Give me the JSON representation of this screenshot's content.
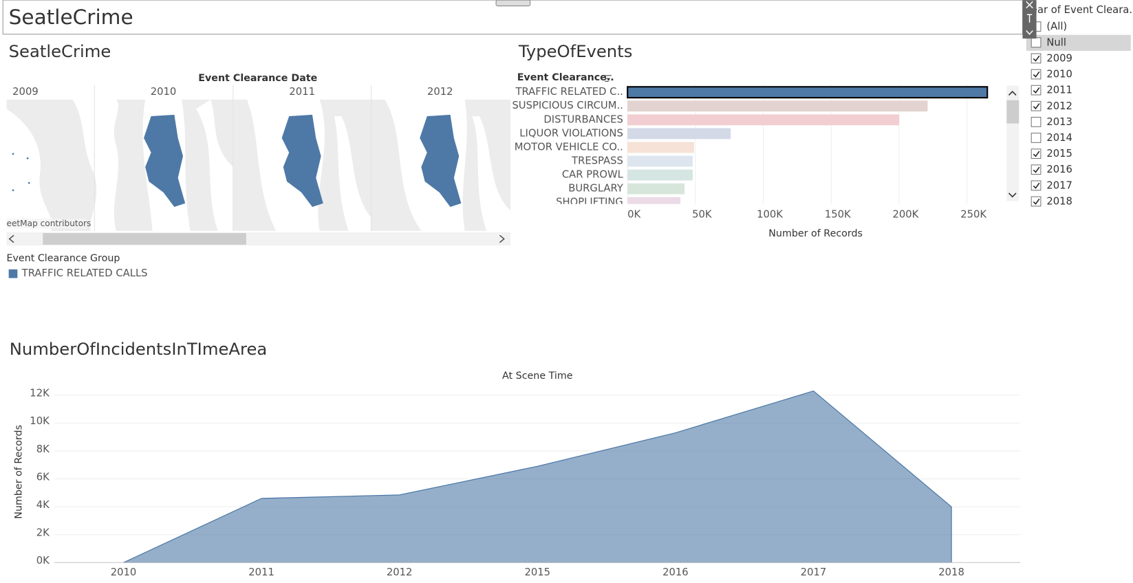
{
  "header": {
    "title": "SeatleCrime"
  },
  "map": {
    "title": "SeatleCrime",
    "column_header": "Event Clearance Date",
    "columns": [
      "2009",
      "2010",
      "2011",
      "2012"
    ],
    "attribution": "eetMap contributors",
    "legend_title": "Event Clearance Group",
    "legend_items": [
      {
        "name": "TRAFFIC RELATED CALLS",
        "color": "#4e79a7"
      }
    ]
  },
  "filter": {
    "title": "Year of Event Cleara..",
    "items": [
      {
        "label": "(All)",
        "checked": false
      },
      {
        "label": "Null",
        "checked": false
      },
      {
        "label": "2009",
        "checked": true
      },
      {
        "label": "2010",
        "checked": true
      },
      {
        "label": "2011",
        "checked": true
      },
      {
        "label": "2012",
        "checked": true
      },
      {
        "label": "2013",
        "checked": false
      },
      {
        "label": "2014",
        "checked": false
      },
      {
        "label": "2015",
        "checked": true
      },
      {
        "label": "2016",
        "checked": true
      },
      {
        "label": "2017",
        "checked": true
      },
      {
        "label": "2018",
        "checked": true
      }
    ]
  },
  "chart_data": [
    {
      "type": "hbar",
      "title": "TypeOfEvents",
      "y_label": "Event Clearance..",
      "x_label": "Number of Records",
      "categories": [
        "TRAFFIC RELATED C..",
        "SUSPICIOUS CIRCUM..",
        "DISTURBANCES",
        "LIQUOR VIOLATIONS",
        "MOTOR VEHICLE CO..",
        "TRESPASS",
        "CAR PROWL",
        "BURGLARY",
        "SHOPLIFTING"
      ],
      "values": [
        265000,
        221000,
        200000,
        76000,
        49000,
        48000,
        48000,
        42000,
        39000
      ],
      "colors": [
        "#4e79a7",
        "#e2d2d0",
        "#f2cdd1",
        "#d3d9e6",
        "#f6e2d6",
        "#dde6ee",
        "#d5e5e2",
        "#d6e6db",
        "#eadbe6"
      ],
      "xlim": [
        0,
        276000
      ],
      "xticks": [
        {
          "value": 0,
          "label": "0K"
        },
        {
          "value": 50000,
          "label": "50K"
        },
        {
          "value": 100000,
          "label": "100K"
        },
        {
          "value": 150000,
          "label": "150K"
        },
        {
          "value": 200000,
          "label": "200K"
        },
        {
          "value": 250000,
          "label": "250K"
        }
      ],
      "grid": true
    },
    {
      "type": "area",
      "title": "NumberOfIncidentsInTImeArea",
      "subtitle": "At Scene Time",
      "y_label": "Number of Records",
      "categories": [
        "2010",
        "2011",
        "2012",
        "2015",
        "2016",
        "2017",
        "2018"
      ],
      "values": [
        0,
        4600,
        4850,
        6900,
        9300,
        12300,
        4000
      ],
      "color": "#4e79a7",
      "ylim": [
        0,
        12900
      ],
      "yticks": [
        {
          "value": 0,
          "label": "0K"
        },
        {
          "value": 2000,
          "label": "2K"
        },
        {
          "value": 4000,
          "label": "4K"
        },
        {
          "value": 6000,
          "label": "6K"
        },
        {
          "value": 8000,
          "label": "8K"
        },
        {
          "value": 10000,
          "label": "10K"
        },
        {
          "value": 12000,
          "label": "12K"
        }
      ],
      "grid": true
    }
  ]
}
